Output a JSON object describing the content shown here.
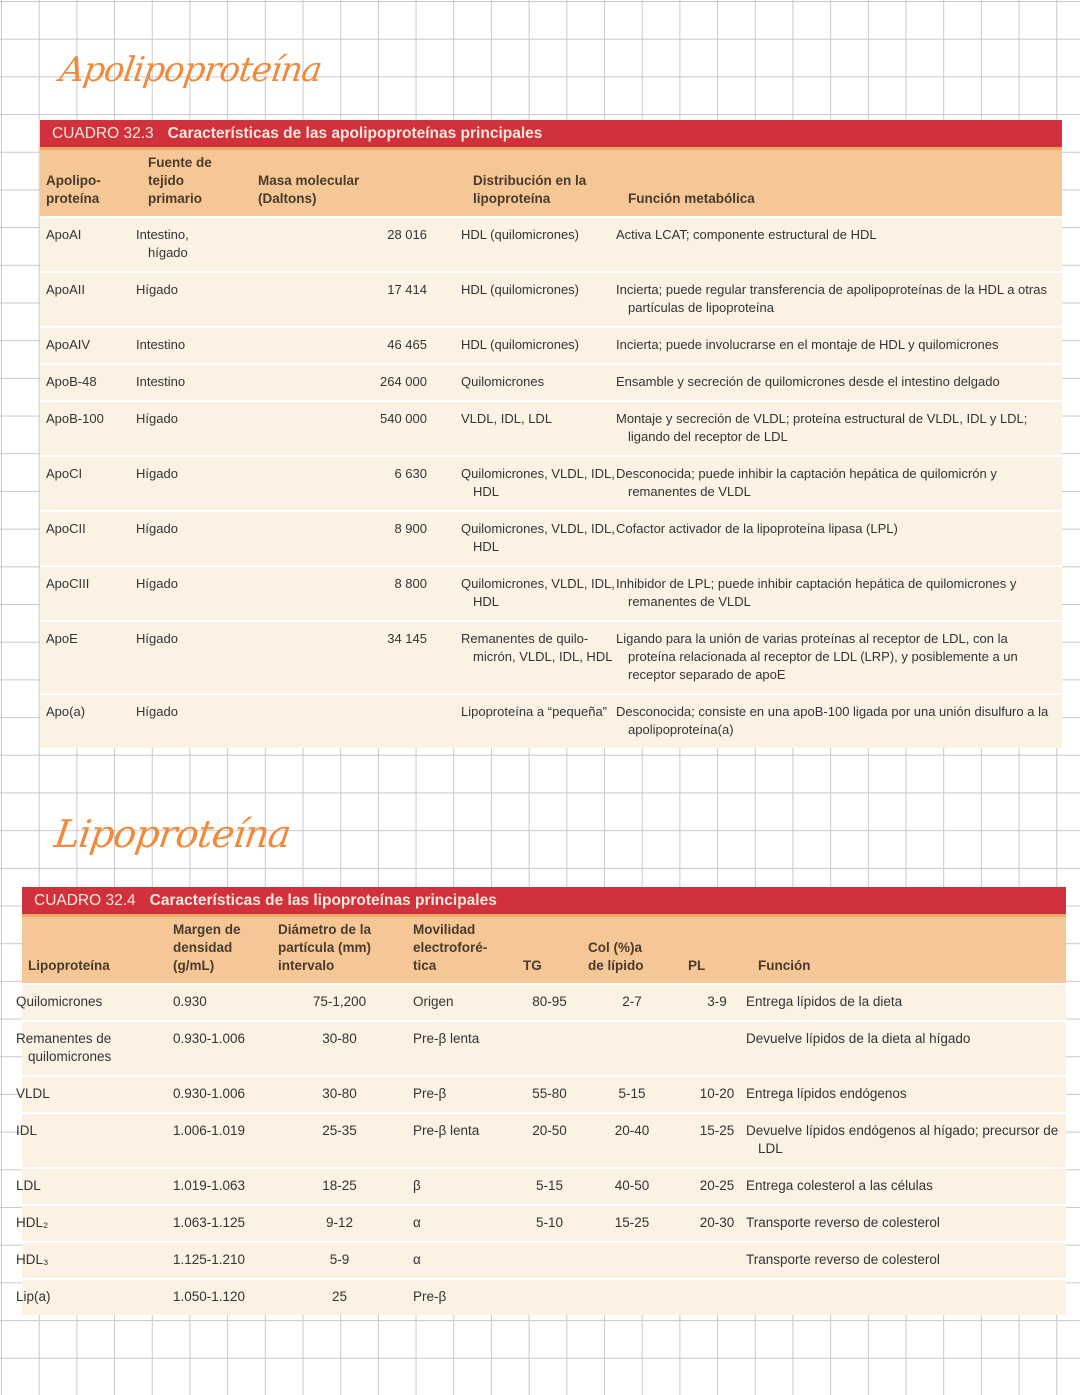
{
  "headings": {
    "apo": "Apolipoproteína",
    "lipo": "Lipoproteína"
  },
  "table1": {
    "label": "CUADRO 32.3",
    "title": "Características de las apolipoproteínas principales",
    "headers": [
      "Apolipo-\nproteína",
      "Fuente de\ntejido\nprimario",
      "Masa molecular\n(Daltons)",
      "Distribución en la\nlipoproteína",
      "Función metabólica"
    ],
    "rows": [
      [
        "ApoAI",
        "Intestino,\nhígado",
        "28 016",
        "HDL (quilomicrones)",
        "Activa LCAT; componente estructural de HDL"
      ],
      [
        "ApoAII",
        "Hígado",
        "17 414",
        "HDL (quilomicrones)",
        "Incierta; puede regular transferencia de apolipoproteínas de la HDL a otras partículas de lipoproteína"
      ],
      [
        "ApoAIV",
        "Intestino",
        "46 465",
        "HDL (quilomicrones)",
        "Incierta; puede involucrarse en el montaje de HDL y quilomicrones"
      ],
      [
        "ApoB-48",
        "Intestino",
        "264 000",
        "Quilomicrones",
        "Ensamble y secreción de quilomicrones desde el intestino delgado"
      ],
      [
        "ApoB-100",
        "Hígado",
        "540 000",
        "VLDL, IDL, LDL",
        "Montaje y secreción de VLDL; proteína estructural de VLDL, IDL y LDL; ligando del receptor de LDL"
      ],
      [
        "ApoCI",
        "Hígado",
        "6 630",
        "Quilomicrones, VLDL, IDL, HDL",
        "Desconocida; puede inhibir la captación hepática de quilomicrón y remanentes de VLDL"
      ],
      [
        "ApoCII",
        "Hígado",
        "8 900",
        "Quilomicrones, VLDL, IDL, HDL",
        "Cofactor activador de la lipoproteína lipasa (LPL)"
      ],
      [
        "ApoCIII",
        "Hígado",
        "8 800",
        "Quilomicrones, VLDL, IDL, HDL",
        "Inhibidor de LPL; puede inhibir captación hepática de quilomicrones y remanentes de VLDL"
      ],
      [
        "ApoE",
        "Hígado",
        "34 145",
        "Remanentes de quilo-micrón, VLDL, IDL, HDL",
        "Ligando para la unión de varias proteínas al receptor de LDL, con la proteína relacionada al receptor de LDL (LRP), y posiblemente a un receptor separado de apoE"
      ],
      [
        "Apo(a)",
        "Hígado",
        "",
        "Lipoproteína a “pequeña”",
        "Desconocida; consiste en una apoB-100 ligada por una unión disulfuro a la apolipoproteína(a)"
      ]
    ]
  },
  "table2": {
    "label": "CUADRO 32.4",
    "title": "Características de las lipoproteínas principales",
    "headers": [
      "Lipoproteína",
      "Margen de\ndensidad\n(g/mL)",
      "Diámetro de la\npartícula (mm)\nintervalo",
      "Movilidad\nelectroforé-\ntica",
      "TG",
      "Col (%)a\nde lípido",
      "PL",
      "Función"
    ],
    "rows": [
      [
        "Quilomicrones",
        "0.930",
        "75-1,200",
        "Origen",
        "80-95",
        "2-7",
        "3-9",
        "Entrega lípidos de la dieta"
      ],
      [
        "Remanentes de quilomicrones",
        "0.930-1.006",
        "30-80",
        "Pre-β lenta",
        "",
        "",
        "",
        "Devuelve lípidos de la dieta al hígado"
      ],
      [
        "VLDL",
        "0.930-1.006",
        "30-80",
        "Pre-β",
        "55-80",
        "5-15",
        "10-20",
        "Entrega lípidos endógenos"
      ],
      [
        "IDL",
        "1.006-1.019",
        "25-35",
        "Pre-β lenta",
        "20-50",
        "20-40",
        "15-25",
        "Devuelve lípidos endógenos al hígado; precursor de LDL"
      ],
      [
        "LDL",
        "1.019-1.063",
        "18-25",
        "β",
        "5-15",
        "40-50",
        "20-25",
        "Entrega colesterol a las células"
      ],
      [
        "HDL₂",
        "1.063-1.125",
        "9-12",
        "α",
        "5-10",
        "15-25",
        "20-30",
        "Transporte reverso de colesterol"
      ],
      [
        "HDL₃",
        "1.125-1.210",
        "5-9",
        "α",
        "",
        "",
        "",
        "Transporte reverso de colesterol"
      ],
      [
        "Lip(a)",
        "1.050-1.120",
        "25",
        "Pre-β",
        "",
        "",
        "",
        ""
      ]
    ]
  }
}
